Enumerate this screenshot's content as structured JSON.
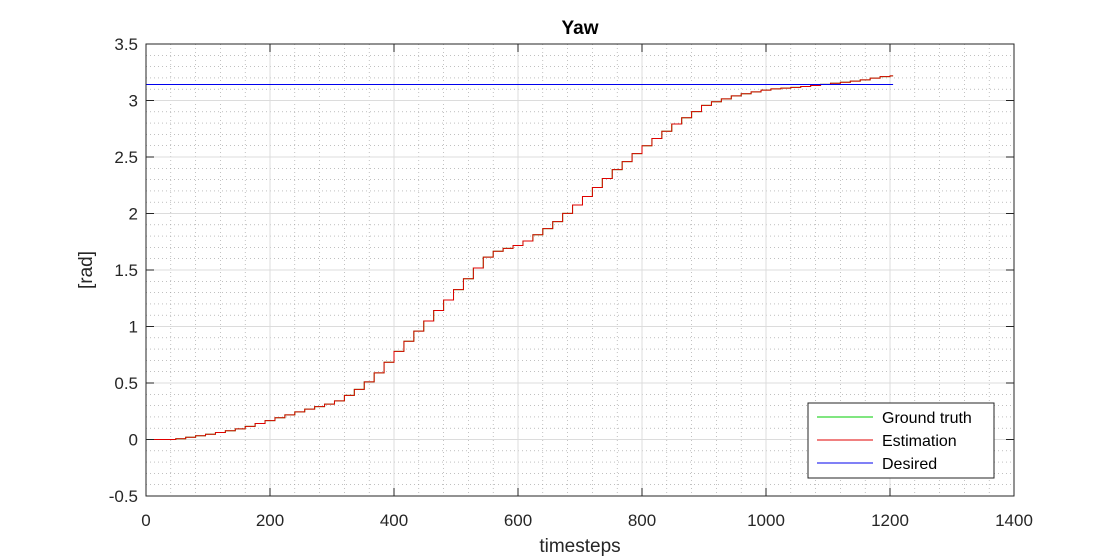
{
  "chart_data": {
    "type": "line",
    "title": "Yaw",
    "xlabel": "timesteps",
    "ylabel": "[rad]",
    "xlim": [
      0,
      1400
    ],
    "ylim": [
      -0.5,
      3.5
    ],
    "xticks": [
      0,
      200,
      400,
      600,
      800,
      1000,
      1200,
      1400
    ],
    "yticks": [
      -0.5,
      0,
      0.5,
      1,
      1.5,
      2,
      2.5,
      3,
      3.5
    ],
    "xtick_labels": [
      "0",
      "200",
      "400",
      "600",
      "800",
      "1000",
      "1200",
      "1400"
    ],
    "ytick_labels": [
      "-0.5",
      "0",
      "0.5",
      "1",
      "1.5",
      "2",
      "2.5",
      "3",
      "3.5"
    ],
    "grid": "major and minor",
    "legend_position": "bottom-right",
    "series": [
      {
        "name": "Ground truth",
        "color": "#00cc00",
        "x": [
          0,
          40,
          100,
          150,
          200,
          250,
          300,
          330,
          350,
          370,
          400,
          450,
          500,
          550,
          600,
          650,
          700,
          750,
          800,
          850,
          900,
          950,
          1000,
          1050,
          1100,
          1150,
          1180,
          1205
        ],
        "values": [
          0.0,
          0.0,
          0.05,
          0.1,
          0.18,
          0.26,
          0.33,
          0.42,
          0.5,
          0.6,
          0.78,
          1.06,
          1.35,
          1.65,
          1.73,
          1.9,
          2.13,
          2.38,
          2.6,
          2.8,
          2.97,
          3.05,
          3.1,
          3.12,
          3.15,
          3.18,
          3.21,
          3.22
        ]
      },
      {
        "name": "Estimation",
        "color": "#e00000",
        "x": [
          0,
          40,
          100,
          150,
          200,
          250,
          300,
          330,
          350,
          370,
          400,
          450,
          500,
          550,
          600,
          650,
          700,
          750,
          800,
          850,
          900,
          950,
          1000,
          1050,
          1100,
          1150,
          1180,
          1205
        ],
        "values": [
          0.0,
          0.0,
          0.05,
          0.1,
          0.18,
          0.26,
          0.33,
          0.42,
          0.5,
          0.6,
          0.78,
          1.06,
          1.35,
          1.65,
          1.73,
          1.9,
          2.13,
          2.38,
          2.6,
          2.8,
          2.97,
          3.05,
          3.1,
          3.12,
          3.15,
          3.18,
          3.21,
          3.22
        ]
      },
      {
        "name": "Desired",
        "color": "#0000ee",
        "x": [
          0,
          1205
        ],
        "values": [
          3.1416,
          3.1416
        ]
      }
    ]
  }
}
